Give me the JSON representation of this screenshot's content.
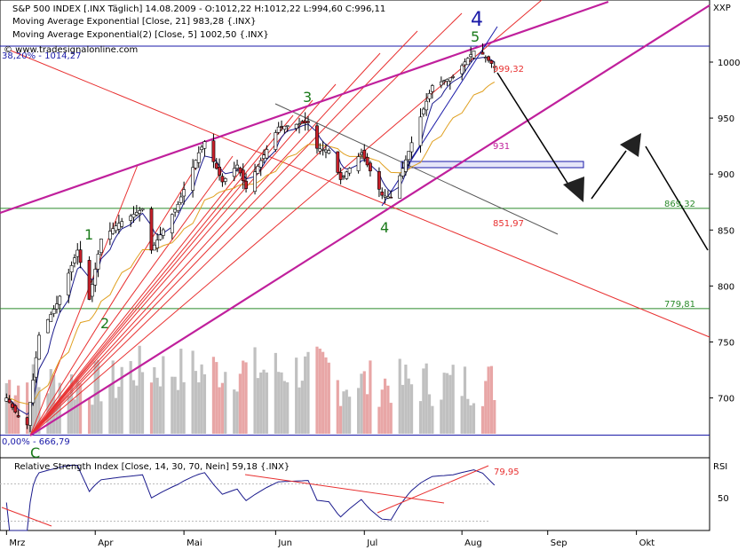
{
  "header": {
    "line1": "S&P 500 INDEX [.INX Täglich] 14.08.2009 - O:1012,22 H:1012,22 L:994,60 C:996,11",
    "line2": "Moving Average Exponential [Close, 21] 983,28 {.INX}",
    "line3": "Moving Average Exponential(2) [Close, 5] 1002,50 {.INX}",
    "watermark": "© www.tradesignalonline.com",
    "fib_top_label": "38,20% - 1014,27",
    "fib_bottom_label": "0,00% - 666,79",
    "symbol": "XXP"
  },
  "rsi_panel": {
    "title": "Relative Strength Index [Close, 14, 30, 70, Nein] 59,18 {.INX}",
    "axis_label": "RSI",
    "tick": "50",
    "value_label": "79,95"
  },
  "annotations": {
    "levels": [
      "999,32",
      "931",
      "869,32",
      "851,97",
      "779,81"
    ],
    "waves": [
      "1",
      "2",
      "3",
      "4",
      "4",
      "5",
      "C"
    ]
  },
  "chart_data": {
    "type": "candlestick",
    "title": "S&P 500 INDEX [.INX Täglich]",
    "x_ticks": [
      "Mrz",
      "Apr",
      "Mai",
      "Jun",
      "Jul",
      "Aug",
      "Sep",
      "Okt"
    ],
    "y_ticks": [
      700,
      750,
      800,
      850,
      900,
      950,
      1000
    ],
    "ylim": [
      630,
      1090
    ],
    "price_path": [
      {
        "date": "2009-03-02",
        "close": 700
      },
      {
        "date": "2009-03-06",
        "close": 683
      },
      {
        "date": "2009-03-09",
        "close": 676
      },
      {
        "date": "2009-03-13",
        "close": 756
      },
      {
        "date": "2009-03-19",
        "close": 784
      },
      {
        "date": "2009-03-26",
        "close": 832
      },
      {
        "date": "2009-03-30",
        "close": 788
      },
      {
        "date": "2009-04-03",
        "close": 842
      },
      {
        "date": "2009-04-09",
        "close": 856
      },
      {
        "date": "2009-04-17",
        "close": 869
      },
      {
        "date": "2009-04-20",
        "close": 832
      },
      {
        "date": "2009-04-29",
        "close": 873
      },
      {
        "date": "2009-05-06",
        "close": 919
      },
      {
        "date": "2009-05-08",
        "close": 929
      },
      {
        "date": "2009-05-14",
        "close": 893
      },
      {
        "date": "2009-05-19",
        "close": 908
      },
      {
        "date": "2009-05-22",
        "close": 887
      },
      {
        "date": "2009-06-02",
        "close": 942
      },
      {
        "date": "2009-06-12",
        "close": 946
      },
      {
        "date": "2009-06-15",
        "close": 923
      },
      {
        "date": "2009-06-19",
        "close": 921
      },
      {
        "date": "2009-06-23",
        "close": 895
      },
      {
        "date": "2009-06-30",
        "close": 919
      },
      {
        "date": "2009-07-07",
        "close": 881
      },
      {
        "date": "2009-07-10",
        "close": 879
      },
      {
        "date": "2009-07-14",
        "close": 905
      },
      {
        "date": "2009-07-20",
        "close": 951
      },
      {
        "date": "2009-07-24",
        "close": 979
      },
      {
        "date": "2009-07-31",
        "close": 987
      },
      {
        "date": "2009-08-07",
        "close": 1010
      },
      {
        "date": "2009-08-10",
        "close": 1007
      },
      {
        "date": "2009-08-14",
        "close": 996
      }
    ],
    "series": [
      {
        "name": "Moving Average Exponential [Close, 21]",
        "last": 983.28
      },
      {
        "name": "Moving Average Exponential(2) [Close, 5]",
        "last": 1002.5
      }
    ],
    "horizontal_levels": [
      1014.27,
      931,
      869.32,
      779.81,
      666.79
    ]
  },
  "colors": {
    "candle_up": "#ffffff",
    "candle_down": "#c8202a",
    "ema21": "#e0a020",
    "ema5": "#1a1a8c",
    "channel": "#c0209c",
    "fan": "#e83030",
    "level_green": "#2a8a2a",
    "level_blue": "#1a1aa8",
    "volume_up": "#c0c0c0",
    "volume_down": "#e8a6a6",
    "wave_green": "#1a7a1a",
    "wave_blue": "#1a1aa8"
  }
}
